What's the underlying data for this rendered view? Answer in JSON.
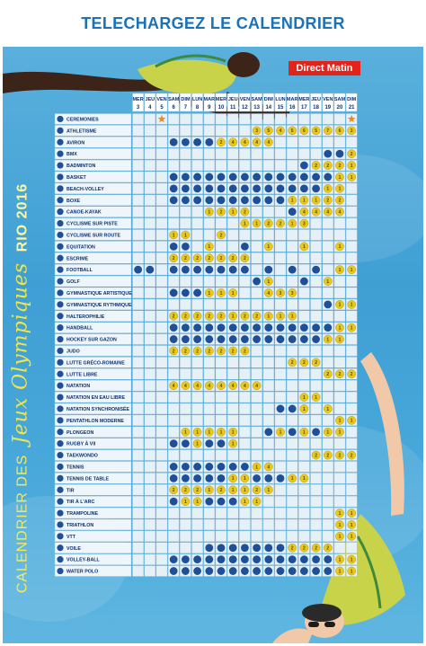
{
  "header": {
    "title": "TELECHARGEZ LE CALENDRIER"
  },
  "poster": {
    "brand": "Direct Matin",
    "vertical_title": {
      "part1": "CALENDRIER DES",
      "part2": "Jeux Olympiques",
      "part3": "RIO 2016"
    }
  },
  "colors": {
    "banner_text": "#1a72b8",
    "pool": "#3f9fd4",
    "grid_cell": "#e6f1f7",
    "dot": "#1f4f96",
    "medal": "#e9c81f",
    "star": "#f08a1c",
    "title_yellow": "#e7e84a"
  },
  "calendar": {
    "days": [
      "MER",
      "JEU",
      "VEN",
      "SAM",
      "DIM",
      "LUN",
      "MAR",
      "MER",
      "JEU",
      "VEN",
      "SAM",
      "DIM",
      "LUN",
      "MAR",
      "MER",
      "JEU",
      "VEN",
      "SAM",
      "DIM"
    ],
    "dates": [
      "3",
      "4",
      "5",
      "6",
      "7",
      "8",
      "9",
      "10",
      "11",
      "12",
      "13",
      "14",
      "15",
      "16",
      "17",
      "18",
      "19",
      "20",
      "21"
    ],
    "sports": [
      {
        "name": "CEREMONIES",
        "cells": [
          "",
          "",
          "S",
          "",
          "",
          "",
          "",
          "",
          "",
          "",
          "",
          "",
          "",
          "",
          "",
          "",
          "",
          "",
          "S"
        ]
      },
      {
        "name": "ATHLETISME",
        "cells": [
          "",
          "",
          "",
          "",
          "",
          "",
          "",
          "",
          "",
          "",
          "3",
          "5",
          "4",
          "5",
          "6",
          "5",
          "7",
          "6",
          "3"
        ]
      },
      {
        "name": "AVIRON",
        "cells": [
          "",
          "",
          "",
          "D",
          "D",
          "D",
          "D",
          "2",
          "4",
          "4",
          "4",
          "4",
          "",
          "",
          "",
          "",
          "",
          "",
          ""
        ]
      },
      {
        "name": "BMX",
        "cells": [
          "",
          "",
          "",
          "",
          "",
          "",
          "",
          "",
          "",
          "",
          "",
          "",
          "",
          "",
          "",
          "",
          "D",
          "D",
          "2"
        ]
      },
      {
        "name": "BADMINTON",
        "cells": [
          "",
          "",
          "",
          "",
          "",
          "",
          "",
          "",
          "",
          "",
          "",
          "",
          "",
          "",
          "D",
          "2",
          "2",
          "2",
          "1"
        ]
      },
      {
        "name": "BASKET",
        "cells": [
          "",
          "",
          "",
          "D",
          "D",
          "D",
          "D",
          "D",
          "D",
          "D",
          "D",
          "D",
          "D",
          "D",
          "D",
          "D",
          "D",
          "1",
          "1"
        ]
      },
      {
        "name": "BEACH-VOLLEY",
        "cells": [
          "",
          "",
          "",
          "D",
          "D",
          "D",
          "D",
          "D",
          "D",
          "D",
          "D",
          "D",
          "D",
          "D",
          "D",
          "D",
          "1",
          "1",
          ""
        ]
      },
      {
        "name": "BOXE",
        "cells": [
          "",
          "",
          "",
          "D",
          "D",
          "D",
          "D",
          "D",
          "D",
          "D",
          "D",
          "D",
          "D",
          "1",
          "1",
          "1",
          "2",
          "2",
          ""
        ]
      },
      {
        "name": "CANOE-KAYAK",
        "cells": [
          "",
          "",
          "",
          "",
          "",
          "",
          "1",
          "2",
          "1",
          "2",
          "",
          "",
          "",
          "D",
          "4",
          "4",
          "4",
          "4",
          ""
        ]
      },
      {
        "name": "CYCLISME SUR PISTE",
        "cells": [
          "",
          "",
          "",
          "",
          "",
          "",
          "",
          "",
          "",
          "1",
          "1",
          "2",
          "2",
          "1",
          "3",
          "",
          "",
          "",
          ""
        ]
      },
      {
        "name": "CYCLISME SUR ROUTE",
        "cells": [
          "",
          "",
          "",
          "1",
          "1",
          "",
          "",
          "2",
          "",
          "",
          "",
          "",
          "",
          "",
          "",
          "",
          "",
          "",
          ""
        ]
      },
      {
        "name": "EQUITATION",
        "cells": [
          "",
          "",
          "",
          "D",
          "D",
          "",
          "1",
          "",
          "",
          "D",
          "",
          "1",
          "",
          "",
          "1",
          "",
          "",
          "1",
          ""
        ]
      },
      {
        "name": "ESCRIME",
        "cells": [
          "",
          "",
          "",
          "2",
          "2",
          "2",
          "2",
          "2",
          "2",
          "2",
          "",
          "",
          "",
          "",
          "",
          "",
          "",
          "",
          ""
        ]
      },
      {
        "name": "FOOTBALL",
        "cells": [
          "D",
          "D",
          "",
          "D",
          "D",
          "D",
          "D",
          "D",
          "D",
          "D",
          "",
          "D",
          "",
          "D",
          "",
          "D",
          "",
          "1",
          "1"
        ]
      },
      {
        "name": "GOLF",
        "cells": [
          "",
          "",
          "",
          "",
          "",
          "",
          "",
          "",
          "",
          "",
          "D",
          "1",
          "",
          "",
          "D",
          "",
          "1",
          "",
          ""
        ]
      },
      {
        "name": "GYMNASTIQUE ARTISTIQUE",
        "cells": [
          "",
          "",
          "",
          "D",
          "D",
          "D",
          "1",
          "1",
          "1",
          "",
          "",
          "4",
          "3",
          "3",
          "",
          "",
          "",
          "",
          ""
        ]
      },
      {
        "name": "GYMNASTIQUE RYTHMIQUE",
        "cells": [
          "",
          "",
          "",
          "",
          "",
          "",
          "",
          "",
          "",
          "",
          "",
          "",
          "",
          "",
          "",
          "",
          "D",
          "1",
          "1"
        ]
      },
      {
        "name": "HALTEROPHILIE",
        "cells": [
          "",
          "",
          "",
          "2",
          "2",
          "2",
          "2",
          "2",
          "1",
          "2",
          "2",
          "1",
          "1",
          "1",
          "",
          "",
          "",
          "",
          ""
        ]
      },
      {
        "name": "HANDBALL",
        "cells": [
          "",
          "",
          "",
          "D",
          "D",
          "D",
          "D",
          "D",
          "D",
          "D",
          "D",
          "D",
          "D",
          "D",
          "D",
          "D",
          "D",
          "1",
          "1"
        ]
      },
      {
        "name": "HOCKEY SUR GAZON",
        "cells": [
          "",
          "",
          "",
          "D",
          "D",
          "D",
          "D",
          "D",
          "D",
          "D",
          "D",
          "D",
          "D",
          "D",
          "D",
          "D",
          "1",
          "1",
          ""
        ]
      },
      {
        "name": "JUDO",
        "cells": [
          "",
          "",
          "",
          "2",
          "2",
          "2",
          "2",
          "2",
          "2",
          "2",
          "",
          "",
          "",
          "",
          "",
          "",
          "",
          "",
          ""
        ]
      },
      {
        "name": "LUTTE GRÉCO-ROMAINE",
        "cells": [
          "",
          "",
          "",
          "",
          "",
          "",
          "",
          "",
          "",
          "",
          "",
          "",
          "",
          "2",
          "2",
          "2",
          "",
          "",
          ""
        ]
      },
      {
        "name": "LUTTE LIBRE",
        "cells": [
          "",
          "",
          "",
          "",
          "",
          "",
          "",
          "",
          "",
          "",
          "",
          "",
          "",
          "",
          "",
          "",
          "2",
          "2",
          "2"
        ]
      },
      {
        "name": "NATATION",
        "cells": [
          "",
          "",
          "",
          "4",
          "4",
          "4",
          "4",
          "4",
          "4",
          "4",
          "4",
          "",
          "",
          "",
          "",
          "",
          "",
          "",
          ""
        ]
      },
      {
        "name": "NATATION EN EAU LIBRE",
        "cells": [
          "",
          "",
          "",
          "",
          "",
          "",
          "",
          "",
          "",
          "",
          "",
          "",
          "",
          "",
          "1",
          "1",
          "",
          "",
          ""
        ]
      },
      {
        "name": "NATATION SYNCHRONISÉE",
        "cells": [
          "",
          "",
          "",
          "",
          "",
          "",
          "",
          "",
          "",
          "",
          "",
          "",
          "D",
          "D",
          "1",
          "",
          "1",
          "",
          ""
        ]
      },
      {
        "name": "PENTATHLON MODERNE",
        "cells": [
          "",
          "",
          "",
          "",
          "",
          "",
          "",
          "",
          "",
          "",
          "",
          "",
          "",
          "",
          "",
          "",
          "",
          "1",
          "1"
        ]
      },
      {
        "name": "PLONGEON",
        "cells": [
          "",
          "",
          "",
          "",
          "1",
          "1",
          "1",
          "1",
          "1",
          "",
          "",
          "D",
          "1",
          "D",
          "1",
          "D",
          "1",
          "1",
          ""
        ]
      },
      {
        "name": "RUGBY À VII",
        "cells": [
          "",
          "",
          "",
          "D",
          "D",
          "1",
          "D",
          "D",
          "1",
          "",
          "",
          "",
          "",
          "",
          "",
          "",
          "",
          "",
          ""
        ]
      },
      {
        "name": "TAEKWONDO",
        "cells": [
          "",
          "",
          "",
          "",
          "",
          "",
          "",
          "",
          "",
          "",
          "",
          "",
          "",
          "",
          "",
          "2",
          "2",
          "2",
          "2"
        ]
      },
      {
        "name": "TENNIS",
        "cells": [
          "",
          "",
          "",
          "D",
          "D",
          "D",
          "D",
          "D",
          "D",
          "D",
          "1",
          "4",
          "",
          "",
          "",
          "",
          "",
          "",
          ""
        ]
      },
      {
        "name": "TENNIS DE TABLE",
        "cells": [
          "",
          "",
          "",
          "D",
          "D",
          "D",
          "D",
          "D",
          "1",
          "1",
          "D",
          "D",
          "D",
          "1",
          "1",
          "",
          "",
          "",
          ""
        ]
      },
      {
        "name": "TIR",
        "cells": [
          "",
          "",
          "",
          "2",
          "2",
          "2",
          "1",
          "2",
          "1",
          "1",
          "2",
          "1",
          "",
          "",
          "",
          "",
          "",
          "",
          ""
        ]
      },
      {
        "name": "TIR À L'ARC",
        "cells": [
          "",
          "",
          "",
          "D",
          "1",
          "1",
          "D",
          "D",
          "D",
          "1",
          "1",
          "",
          "",
          "",
          "",
          "",
          "",
          "",
          ""
        ]
      },
      {
        "name": "TRAMPOLINE",
        "cells": [
          "",
          "",
          "",
          "",
          "",
          "",
          "",
          "",
          "",
          "",
          "",
          "",
          "",
          "",
          "",
          "",
          "",
          "1",
          "1"
        ]
      },
      {
        "name": "TRIATHLON",
        "cells": [
          "",
          "",
          "",
          "",
          "",
          "",
          "",
          "",
          "",
          "",
          "",
          "",
          "",
          "",
          "",
          "",
          "",
          "1",
          "1"
        ]
      },
      {
        "name": "VTT",
        "cells": [
          "",
          "",
          "",
          "",
          "",
          "",
          "",
          "",
          "",
          "",
          "",
          "",
          "",
          "",
          "",
          "",
          "",
          "1",
          "1"
        ]
      },
      {
        "name": "VOILE",
        "cells": [
          "",
          "",
          "",
          "",
          "",
          "",
          "D",
          "D",
          "D",
          "D",
          "D",
          "D",
          "D",
          "2",
          "2",
          "2",
          "2",
          "",
          ""
        ]
      },
      {
        "name": "VOLLEY-BALL",
        "cells": [
          "",
          "",
          "",
          "D",
          "D",
          "D",
          "D",
          "D",
          "D",
          "D",
          "D",
          "D",
          "D",
          "D",
          "D",
          "D",
          "D",
          "1",
          "1"
        ]
      },
      {
        "name": "WATER POLO",
        "cells": [
          "",
          "",
          "",
          "D",
          "D",
          "D",
          "D",
          "D",
          "D",
          "D",
          "D",
          "D",
          "D",
          "D",
          "D",
          "D",
          "D",
          "1",
          "1"
        ]
      }
    ]
  }
}
